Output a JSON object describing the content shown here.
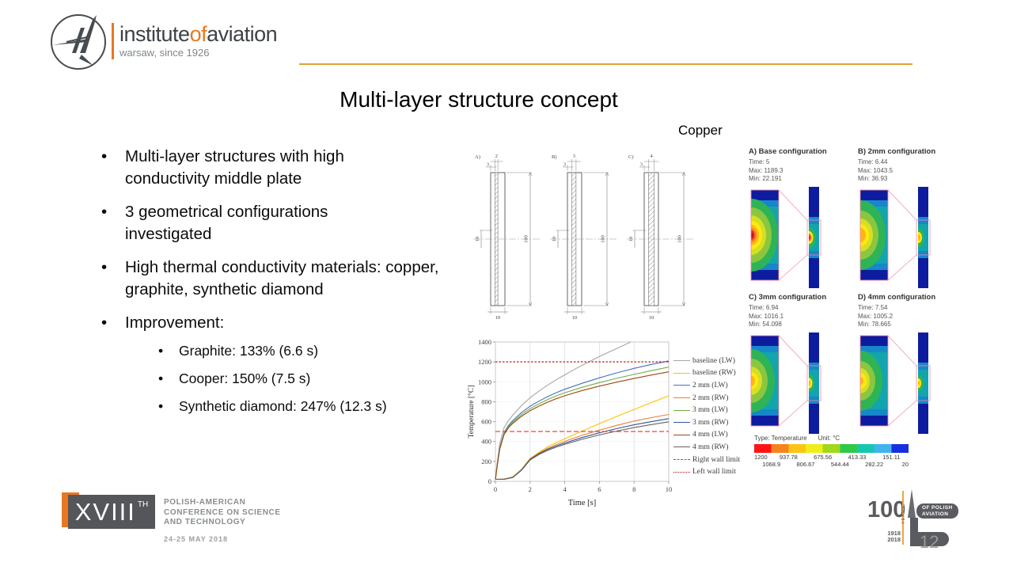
{
  "colors": {
    "brand_orange": "#E87722",
    "divider_gold": "#DFA32D"
  },
  "header": {
    "brand": {
      "part1": "institute",
      "part2": "of",
      "part3": "aviation"
    },
    "tagline": "warsaw, since 1926",
    "title": "Multi-layer structure concept"
  },
  "copper_label": "Copper",
  "bullets": [
    {
      "text": "Multi-layer structures with high conductivity middle plate"
    },
    {
      "text": "3 geometrical configurations investigated"
    },
    {
      "text": "High thermal conductivity materials: copper, graphite, synthetic diamond"
    },
    {
      "text": "Improvement:",
      "sub": [
        "Graphite: 133% (6.6 s)",
        "Cooper: 150% (7.5 s)",
        "Synthetic diamond: 247% (12.3 s)"
      ]
    }
  ],
  "drawings": {
    "items": [
      {
        "label": "A)",
        "dim_top": "2",
        "dim_top2": "3",
        "dim_left": "10",
        "dim_right": "100",
        "dim_bottom": "10",
        "band_units": 2
      },
      {
        "label": "B)",
        "dim_top": "3",
        "dim_top2": "3",
        "dim_left": "10",
        "dim_right": "100",
        "dim_bottom": "10",
        "band_units": 3
      },
      {
        "label": "C)",
        "dim_top": "4",
        "dim_top2": "3",
        "dim_left": "10",
        "dim_right": "100",
        "dim_bottom": "10",
        "band_units": 4
      }
    ]
  },
  "chart_data": {
    "type": "line",
    "title": "",
    "xlabel": "Time [s]",
    "ylabel": "Temperature [°C]",
    "xlim": [
      0,
      10
    ],
    "ylim": [
      0,
      1400
    ],
    "xticks": [
      0,
      2,
      4,
      6,
      8,
      10
    ],
    "yticks": [
      0,
      200,
      400,
      600,
      800,
      1000,
      1200,
      1400
    ],
    "legend_position": "right",
    "series": [
      {
        "name": "baseline (LW)",
        "color": "#a6a6a6",
        "style": "solid",
        "points": [
          [
            0,
            20
          ],
          [
            0.1,
            180
          ],
          [
            0.25,
            380
          ],
          [
            0.5,
            540
          ],
          [
            0.75,
            610
          ],
          [
            1,
            665
          ],
          [
            1.5,
            760
          ],
          [
            2,
            840
          ],
          [
            2.5,
            905
          ],
          [
            3,
            965
          ],
          [
            3.5,
            1020
          ],
          [
            4,
            1070
          ],
          [
            4.5,
            1120
          ],
          [
            5,
            1165
          ],
          [
            5.5,
            1210
          ],
          [
            6,
            1255
          ],
          [
            6.5,
            1295
          ],
          [
            7,
            1335
          ],
          [
            7.5,
            1375
          ],
          [
            7.8,
            1400
          ]
        ]
      },
      {
        "name": "baseline (RW)",
        "color": "#ffc000",
        "style": "solid",
        "points": [
          [
            0,
            20
          ],
          [
            0.5,
            22
          ],
          [
            1,
            45
          ],
          [
            1.5,
            120
          ],
          [
            2,
            230
          ],
          [
            2.5,
            290
          ],
          [
            3,
            345
          ],
          [
            3.5,
            388
          ],
          [
            4,
            428
          ],
          [
            5,
            505
          ],
          [
            6,
            580
          ],
          [
            7,
            652
          ],
          [
            8,
            722
          ],
          [
            9,
            792
          ],
          [
            10,
            858
          ]
        ]
      },
      {
        "name": "2 mm (LW)",
        "color": "#4472c4",
        "style": "solid",
        "points": [
          [
            0,
            20
          ],
          [
            0.1,
            160
          ],
          [
            0.25,
            340
          ],
          [
            0.5,
            490
          ],
          [
            0.75,
            560
          ],
          [
            1,
            610
          ],
          [
            1.5,
            690
          ],
          [
            2,
            755
          ],
          [
            2.5,
            805
          ],
          [
            3,
            850
          ],
          [
            3.5,
            890
          ],
          [
            4,
            925
          ],
          [
            5,
            985
          ],
          [
            6,
            1040
          ],
          [
            7,
            1090
          ],
          [
            8,
            1135
          ],
          [
            9,
            1175
          ],
          [
            10,
            1210
          ]
        ]
      },
      {
        "name": "2 mm (RW)",
        "color": "#ed7d31",
        "style": "solid",
        "points": [
          [
            0,
            20
          ],
          [
            0.5,
            22
          ],
          [
            1,
            42
          ],
          [
            1.5,
            115
          ],
          [
            2,
            225
          ],
          [
            2.5,
            282
          ],
          [
            3,
            330
          ],
          [
            3.5,
            368
          ],
          [
            4,
            402
          ],
          [
            5,
            462
          ],
          [
            6,
            515
          ],
          [
            7,
            562
          ],
          [
            8,
            605
          ],
          [
            9,
            640
          ],
          [
            10,
            672
          ]
        ]
      },
      {
        "name": "3 mm (LW)",
        "color": "#70ad47",
        "style": "solid",
        "points": [
          [
            0,
            20
          ],
          [
            0.1,
            155
          ],
          [
            0.25,
            330
          ],
          [
            0.5,
            480
          ],
          [
            0.75,
            548
          ],
          [
            1,
            595
          ],
          [
            1.5,
            670
          ],
          [
            2,
            730
          ],
          [
            2.5,
            778
          ],
          [
            3,
            820
          ],
          [
            3.5,
            858
          ],
          [
            4,
            890
          ],
          [
            5,
            945
          ],
          [
            6,
            992
          ],
          [
            7,
            1035
          ],
          [
            8,
            1075
          ],
          [
            9,
            1112
          ],
          [
            10,
            1148
          ]
        ]
      },
      {
        "name": "3 mm (RW)",
        "color": "#2f5597",
        "style": "solid",
        "points": [
          [
            0,
            20
          ],
          [
            0.5,
            21
          ],
          [
            1,
            40
          ],
          [
            1.5,
            112
          ],
          [
            2,
            220
          ],
          [
            2.5,
            275
          ],
          [
            3,
            320
          ],
          [
            3.5,
            355
          ],
          [
            4,
            385
          ],
          [
            5,
            440
          ],
          [
            6,
            488
          ],
          [
            7,
            530
          ],
          [
            8,
            568
          ],
          [
            9,
            600
          ],
          [
            10,
            630
          ]
        ]
      },
      {
        "name": "4 mm (LW)",
        "color": "#9e480e",
        "style": "solid",
        "points": [
          [
            0,
            20
          ],
          [
            0.1,
            150
          ],
          [
            0.25,
            325
          ],
          [
            0.5,
            472
          ],
          [
            0.75,
            538
          ],
          [
            1,
            582
          ],
          [
            1.5,
            652
          ],
          [
            2,
            710
          ],
          [
            2.5,
            755
          ],
          [
            3,
            795
          ],
          [
            3.5,
            830
          ],
          [
            4,
            860
          ],
          [
            5,
            912
          ],
          [
            6,
            957
          ],
          [
            7,
            997
          ],
          [
            8,
            1033
          ],
          [
            9,
            1068
          ],
          [
            10,
            1100
          ]
        ]
      },
      {
        "name": "4 mm (RW)",
        "color": "#636363",
        "style": "solid",
        "points": [
          [
            0,
            20
          ],
          [
            0.5,
            21
          ],
          [
            1,
            38
          ],
          [
            1.5,
            110
          ],
          [
            2,
            215
          ],
          [
            2.5,
            268
          ],
          [
            3,
            310
          ],
          [
            3.5,
            343
          ],
          [
            4,
            372
          ],
          [
            5,
            422
          ],
          [
            6,
            466
          ],
          [
            7,
            505
          ],
          [
            8,
            540
          ],
          [
            9,
            570
          ],
          [
            10,
            598
          ]
        ]
      },
      {
        "name": "Right wall limit",
        "color": "#ff2a2a",
        "style": "dashed",
        "points": [
          [
            0,
            500
          ],
          [
            10,
            500
          ]
        ]
      },
      {
        "name": "Left wall limit",
        "color": "#c00000",
        "style": "dotted",
        "points": [
          [
            0,
            1200
          ],
          [
            10,
            1200
          ]
        ]
      }
    ]
  },
  "thermal": {
    "configs": [
      {
        "title": "A) Base configuration",
        "time": "Time: 5",
        "max": "Max: 1189.3",
        "min": "Min: 22.191"
      },
      {
        "title": "B) 2mm configuration",
        "time": "Time: 6.44",
        "max": "Max: 1043.5",
        "min": "Min: 36.93"
      },
      {
        "title": "C) 3mm configuration",
        "time": "Time: 6.94",
        "max": "Max: 1016.1",
        "min": "Min: 54.098"
      },
      {
        "title": "D) 4mm configuration",
        "time": "Time: 7.54",
        "max": "Max: 1005.2",
        "min": "Min: 78.665"
      }
    ],
    "scale": {
      "type_label": "Type: Temperature",
      "unit_label": "Unit: °C",
      "labels": [
        "1200",
        "1068.9",
        "937.78",
        "806.67",
        "675.56",
        "544.44",
        "413.33",
        "282.22",
        "151.11",
        "20"
      ]
    }
  },
  "footer": {
    "conference": {
      "numeral": "XVIII",
      "suffix": "TH",
      "lines": [
        "POLISH-AMERICAN",
        "CONFERENCE ON SCIENCE",
        "AND TECHNOLOGY"
      ],
      "date": "24-25 MAY 2018"
    },
    "aviation100": {
      "number": "100",
      "years_vertical": "YEARS",
      "badge1": "OF POLISH",
      "badge2": "AVIATION",
      "year1": "1918",
      "year2": "2018"
    },
    "page_number": "12"
  }
}
